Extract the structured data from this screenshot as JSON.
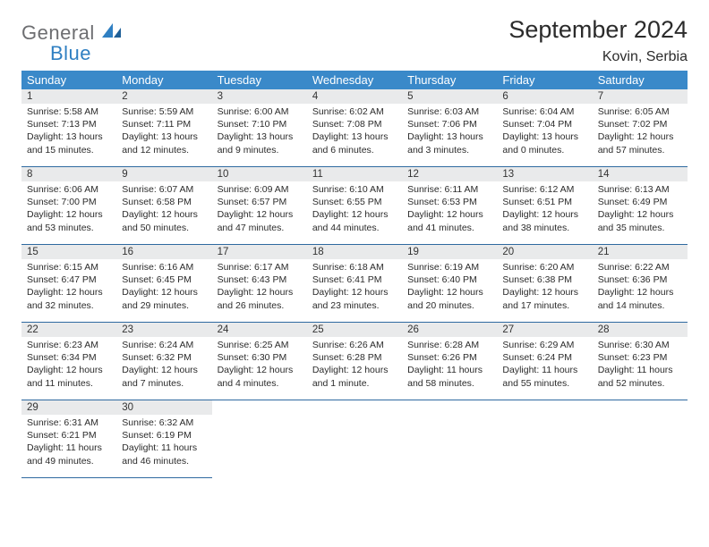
{
  "logo": {
    "word1": "General",
    "word2": "Blue"
  },
  "header": {
    "month": "September 2024",
    "location": "Kovin, Serbia"
  },
  "colors": {
    "header_bg": "#3a89c9",
    "header_text": "#ffffff",
    "daynum_bg": "#e9eaeb",
    "row_border": "#2f6aa0",
    "logo_gray": "#6d6e71",
    "logo_blue": "#2f7fc2"
  },
  "weekdays": [
    "Sunday",
    "Monday",
    "Tuesday",
    "Wednesday",
    "Thursday",
    "Friday",
    "Saturday"
  ],
  "cells": [
    {
      "n": "1",
      "sr": "Sunrise: 5:58 AM",
      "ss": "Sunset: 7:13 PM",
      "d1": "Daylight: 13 hours",
      "d2": "and 15 minutes."
    },
    {
      "n": "2",
      "sr": "Sunrise: 5:59 AM",
      "ss": "Sunset: 7:11 PM",
      "d1": "Daylight: 13 hours",
      "d2": "and 12 minutes."
    },
    {
      "n": "3",
      "sr": "Sunrise: 6:00 AM",
      "ss": "Sunset: 7:10 PM",
      "d1": "Daylight: 13 hours",
      "d2": "and 9 minutes."
    },
    {
      "n": "4",
      "sr": "Sunrise: 6:02 AM",
      "ss": "Sunset: 7:08 PM",
      "d1": "Daylight: 13 hours",
      "d2": "and 6 minutes."
    },
    {
      "n": "5",
      "sr": "Sunrise: 6:03 AM",
      "ss": "Sunset: 7:06 PM",
      "d1": "Daylight: 13 hours",
      "d2": "and 3 minutes."
    },
    {
      "n": "6",
      "sr": "Sunrise: 6:04 AM",
      "ss": "Sunset: 7:04 PM",
      "d1": "Daylight: 13 hours",
      "d2": "and 0 minutes."
    },
    {
      "n": "7",
      "sr": "Sunrise: 6:05 AM",
      "ss": "Sunset: 7:02 PM",
      "d1": "Daylight: 12 hours",
      "d2": "and 57 minutes."
    },
    {
      "n": "8",
      "sr": "Sunrise: 6:06 AM",
      "ss": "Sunset: 7:00 PM",
      "d1": "Daylight: 12 hours",
      "d2": "and 53 minutes."
    },
    {
      "n": "9",
      "sr": "Sunrise: 6:07 AM",
      "ss": "Sunset: 6:58 PM",
      "d1": "Daylight: 12 hours",
      "d2": "and 50 minutes."
    },
    {
      "n": "10",
      "sr": "Sunrise: 6:09 AM",
      "ss": "Sunset: 6:57 PM",
      "d1": "Daylight: 12 hours",
      "d2": "and 47 minutes."
    },
    {
      "n": "11",
      "sr": "Sunrise: 6:10 AM",
      "ss": "Sunset: 6:55 PM",
      "d1": "Daylight: 12 hours",
      "d2": "and 44 minutes."
    },
    {
      "n": "12",
      "sr": "Sunrise: 6:11 AM",
      "ss": "Sunset: 6:53 PM",
      "d1": "Daylight: 12 hours",
      "d2": "and 41 minutes."
    },
    {
      "n": "13",
      "sr": "Sunrise: 6:12 AM",
      "ss": "Sunset: 6:51 PM",
      "d1": "Daylight: 12 hours",
      "d2": "and 38 minutes."
    },
    {
      "n": "14",
      "sr": "Sunrise: 6:13 AM",
      "ss": "Sunset: 6:49 PM",
      "d1": "Daylight: 12 hours",
      "d2": "and 35 minutes."
    },
    {
      "n": "15",
      "sr": "Sunrise: 6:15 AM",
      "ss": "Sunset: 6:47 PM",
      "d1": "Daylight: 12 hours",
      "d2": "and 32 minutes."
    },
    {
      "n": "16",
      "sr": "Sunrise: 6:16 AM",
      "ss": "Sunset: 6:45 PM",
      "d1": "Daylight: 12 hours",
      "d2": "and 29 minutes."
    },
    {
      "n": "17",
      "sr": "Sunrise: 6:17 AM",
      "ss": "Sunset: 6:43 PM",
      "d1": "Daylight: 12 hours",
      "d2": "and 26 minutes."
    },
    {
      "n": "18",
      "sr": "Sunrise: 6:18 AM",
      "ss": "Sunset: 6:41 PM",
      "d1": "Daylight: 12 hours",
      "d2": "and 23 minutes."
    },
    {
      "n": "19",
      "sr": "Sunrise: 6:19 AM",
      "ss": "Sunset: 6:40 PM",
      "d1": "Daylight: 12 hours",
      "d2": "and 20 minutes."
    },
    {
      "n": "20",
      "sr": "Sunrise: 6:20 AM",
      "ss": "Sunset: 6:38 PM",
      "d1": "Daylight: 12 hours",
      "d2": "and 17 minutes."
    },
    {
      "n": "21",
      "sr": "Sunrise: 6:22 AM",
      "ss": "Sunset: 6:36 PM",
      "d1": "Daylight: 12 hours",
      "d2": "and 14 minutes."
    },
    {
      "n": "22",
      "sr": "Sunrise: 6:23 AM",
      "ss": "Sunset: 6:34 PM",
      "d1": "Daylight: 12 hours",
      "d2": "and 11 minutes."
    },
    {
      "n": "23",
      "sr": "Sunrise: 6:24 AM",
      "ss": "Sunset: 6:32 PM",
      "d1": "Daylight: 12 hours",
      "d2": "and 7 minutes."
    },
    {
      "n": "24",
      "sr": "Sunrise: 6:25 AM",
      "ss": "Sunset: 6:30 PM",
      "d1": "Daylight: 12 hours",
      "d2": "and 4 minutes."
    },
    {
      "n": "25",
      "sr": "Sunrise: 6:26 AM",
      "ss": "Sunset: 6:28 PM",
      "d1": "Daylight: 12 hours",
      "d2": "and 1 minute."
    },
    {
      "n": "26",
      "sr": "Sunrise: 6:28 AM",
      "ss": "Sunset: 6:26 PM",
      "d1": "Daylight: 11 hours",
      "d2": "and 58 minutes."
    },
    {
      "n": "27",
      "sr": "Sunrise: 6:29 AM",
      "ss": "Sunset: 6:24 PM",
      "d1": "Daylight: 11 hours",
      "d2": "and 55 minutes."
    },
    {
      "n": "28",
      "sr": "Sunrise: 6:30 AM",
      "ss": "Sunset: 6:23 PM",
      "d1": "Daylight: 11 hours",
      "d2": "and 52 minutes."
    },
    {
      "n": "29",
      "sr": "Sunrise: 6:31 AM",
      "ss": "Sunset: 6:21 PM",
      "d1": "Daylight: 11 hours",
      "d2": "and 49 minutes."
    },
    {
      "n": "30",
      "sr": "Sunrise: 6:32 AM",
      "ss": "Sunset: 6:19 PM",
      "d1": "Daylight: 11 hours",
      "d2": "and 46 minutes."
    }
  ]
}
